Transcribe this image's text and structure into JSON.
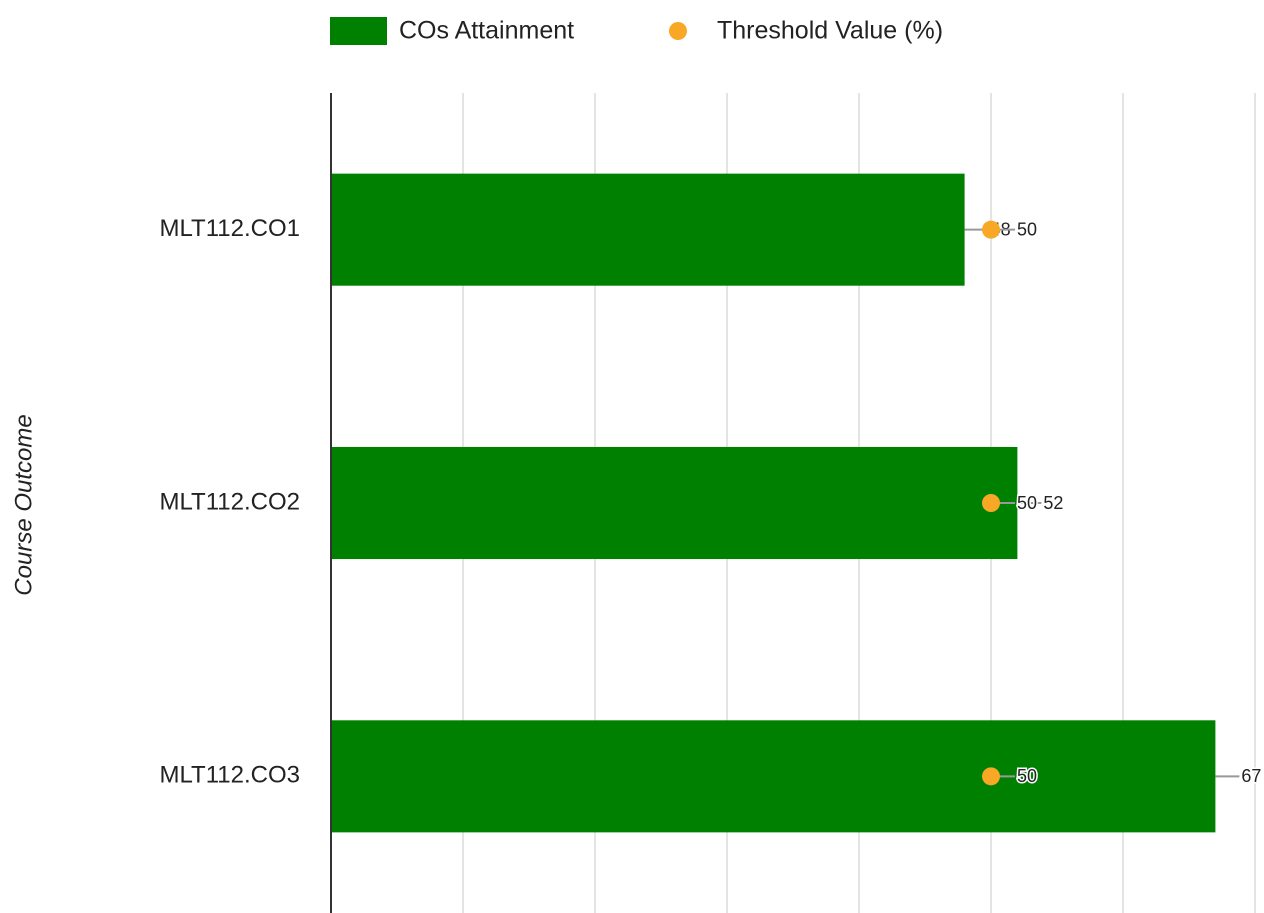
{
  "chart_data": {
    "type": "bar",
    "orientation": "horizontal",
    "y_axis_label": "Course Outcome",
    "categories": [
      "MLT112.CO1",
      "MLT112.CO2",
      "MLT112.CO3"
    ],
    "series": [
      {
        "name": "COs Attainment",
        "type": "bar",
        "color": "#008000",
        "values": [
          48,
          52,
          67
        ]
      },
      {
        "name": "Threshold Value (%)",
        "type": "point",
        "color": "#f9a825",
        "values": [
          50,
          50,
          50
        ]
      }
    ],
    "xlim": [
      0,
      70
    ],
    "xticks": [
      0,
      10,
      20,
      30,
      40,
      50,
      60,
      70
    ],
    "grid": true,
    "legend": "top"
  }
}
